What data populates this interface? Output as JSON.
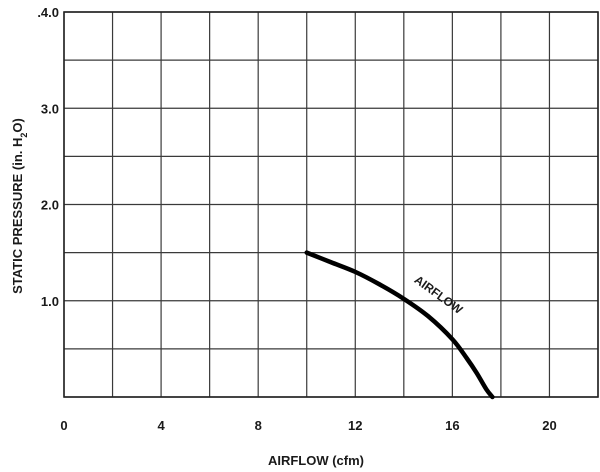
{
  "chart_data": {
    "type": "line",
    "title": "",
    "xlabel": "AIRFLOW (cfm)",
    "ylabel_parts": [
      "STATIC PRESSURE (in. H",
      "2",
      "O)"
    ],
    "xlim": [
      0,
      22
    ],
    "ylim": [
      0,
      4
    ],
    "x_ticks": [
      0,
      4,
      8,
      12,
      16,
      20
    ],
    "x_tick_labels": [
      "0",
      "4",
      "8",
      "12",
      "16",
      "20"
    ],
    "y_ticks": [
      1,
      2,
      3,
      4
    ],
    "y_tick_labels": [
      "1.0",
      "2.0",
      "3.0",
      ".4.0"
    ],
    "grid": true,
    "x_grid_step": 2,
    "y_grid_step": 0.5,
    "series": [
      {
        "x": [
          10.0,
          11.0,
          12.0,
          13.0,
          14.0,
          15.0,
          16.0,
          16.6,
          17.0,
          17.4,
          17.65
        ],
        "y": [
          1.5,
          1.4,
          1.3,
          1.17,
          1.02,
          0.84,
          0.6,
          0.4,
          0.25,
          0.08,
          0.0
        ],
        "color": "#000000"
      }
    ],
    "annotations": [
      {
        "text": "AIRFLOW",
        "x": 14.4,
        "y": 1.2,
        "rotation": 36
      }
    ]
  }
}
